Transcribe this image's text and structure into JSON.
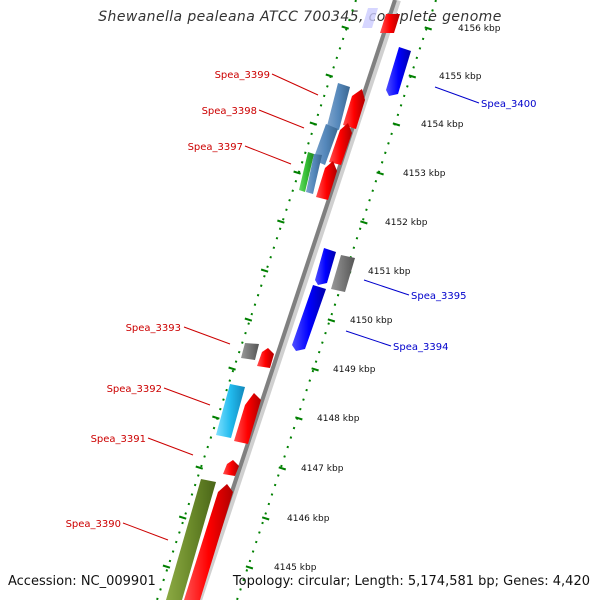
{
  "title": "Shewanella pealeana ATCC 700345, complete genome",
  "footer": {
    "accession": "Accession: NC_009901",
    "summary": "Topology: circular; Length: 5,174,581 bp; Genes: 4,420"
  },
  "colors": {
    "forward": "#ff0000",
    "reverse": "#0000ff",
    "backbone": "#808080",
    "ticks": "#008000",
    "label_forward": "#cc0000",
    "label_reverse": "#0000cc"
  },
  "ticks": [
    {
      "label": "4156 kbp"
    },
    {
      "label": "4155 kbp"
    },
    {
      "label": "4154 kbp"
    },
    {
      "label": "4153 kbp"
    },
    {
      "label": "4152 kbp"
    },
    {
      "label": "4151 kbp"
    },
    {
      "label": "4150 kbp"
    },
    {
      "label": "4149 kbp"
    },
    {
      "label": "4148 kbp"
    },
    {
      "label": "4147 kbp"
    },
    {
      "label": "4146 kbp"
    },
    {
      "label": "4145 kbp"
    }
  ],
  "labels_left": [
    {
      "text": "Spea_3399"
    },
    {
      "text": "Spea_3398"
    },
    {
      "text": "Spea_3397"
    },
    {
      "text": "Spea_3393"
    },
    {
      "text": "Spea_3392"
    },
    {
      "text": "Spea_3391"
    },
    {
      "text": "Spea_3390"
    }
  ],
  "labels_right": [
    {
      "text": "Spea_3400"
    },
    {
      "text": "Spea_3395"
    },
    {
      "text": "Spea_3394"
    }
  ]
}
